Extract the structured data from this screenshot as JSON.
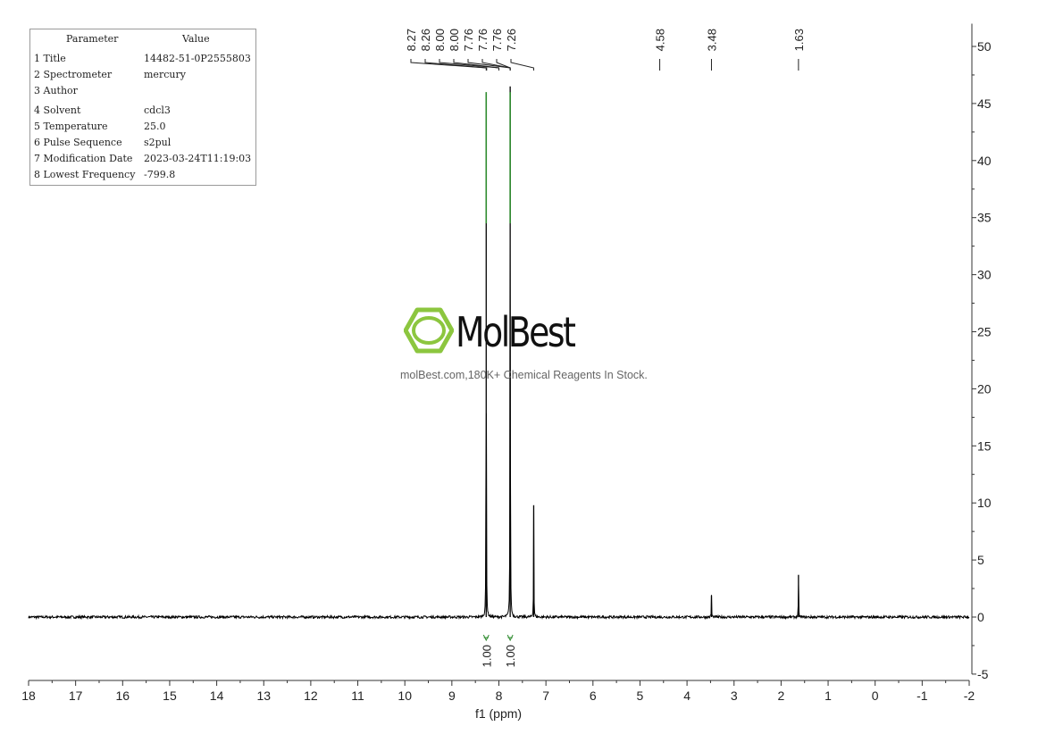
{
  "parameters": {
    "header": [
      "Parameter",
      "Value"
    ],
    "rows": [
      [
        "1 Title",
        "14482-51-0P2555803"
      ],
      [
        "2 Spectrometer",
        "mercury"
      ],
      [
        "3 Author",
        ""
      ],
      [
        "4 Solvent",
        "cdcl3"
      ],
      [
        "5 Temperature",
        "25.0"
      ],
      [
        "6 Pulse Sequence",
        "s2pul"
      ],
      [
        "7 Modification Date",
        "2023-03-24T11:19:03"
      ],
      [
        "8 Lowest Frequency",
        "-799.8"
      ]
    ]
  },
  "watermark": {
    "brand": "MolBest",
    "tagline": "molBest.com,180K+ Chemical Reagents In Stock.",
    "brand_color": "#8cc63f"
  },
  "chart_data": {
    "type": "line",
    "title": "",
    "xlabel": "f1 (ppm)",
    "ylabel": "",
    "xlim": [
      18,
      -2
    ],
    "ylim": [
      -5,
      52
    ],
    "x_reversed": true,
    "x_ticks": [
      18,
      17,
      16,
      15,
      14,
      13,
      12,
      11,
      10,
      9,
      8,
      7,
      6,
      5,
      4,
      3,
      2,
      1,
      0,
      -1,
      -2
    ],
    "x_tick_labels": [
      "18",
      "17",
      "16",
      "15",
      "14",
      "13",
      "12",
      "11",
      "10",
      "9",
      "8",
      "7",
      "6",
      "5",
      "4",
      "3",
      "2",
      "1",
      "0",
      "-1",
      "-2"
    ],
    "y_ticks": [
      -5,
      0,
      5,
      10,
      15,
      20,
      25,
      30,
      35,
      40,
      45,
      50
    ],
    "y_tick_labels": [
      "-5",
      "0",
      "5",
      "10",
      "15",
      "20",
      "25",
      "30",
      "35",
      "40",
      "45",
      "50"
    ],
    "y_axis_side": "right",
    "grid": false,
    "spectrum_color": "#000000",
    "integral_color": "#2e8b2e",
    "peaks": [
      {
        "ppm": 8.27,
        "height": 36.5
      },
      {
        "ppm": 7.76,
        "height": 46.5
      },
      {
        "ppm": 7.26,
        "height": 9.8
      },
      {
        "ppm": 3.48,
        "height": 1.9
      },
      {
        "ppm": 1.63,
        "height": 3.7
      }
    ],
    "peak_labels": [
      "8.27",
      "8.26",
      "8.00",
      "8.00",
      "7.76",
      "7.76",
      "7.76",
      "7.26",
      "4.58",
      "3.48",
      "1.63"
    ],
    "peak_label_positions": [
      8.27,
      8.26,
      8.0,
      8.0,
      7.76,
      7.76,
      7.76,
      7.26,
      4.58,
      3.48,
      1.63
    ],
    "integrals": [
      {
        "ppm": 8.27,
        "value": "1.00",
        "range": [
          8.32,
          8.22
        ]
      },
      {
        "ppm": 7.76,
        "value": "1.00",
        "range": [
          7.81,
          7.71
        ]
      }
    ]
  }
}
